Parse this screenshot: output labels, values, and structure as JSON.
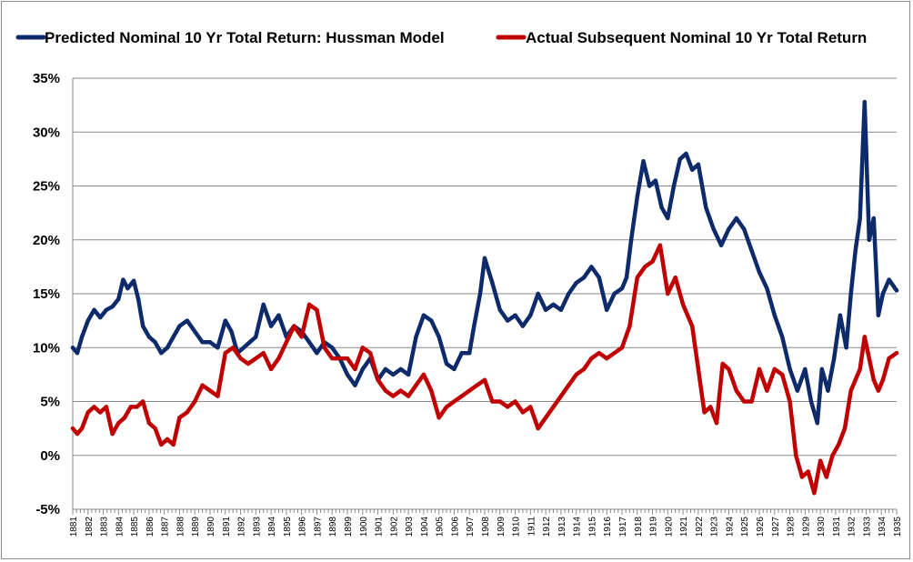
{
  "chart_data": {
    "type": "line",
    "title": "",
    "xlabel": "",
    "ylabel": "",
    "ylim": [
      -5,
      35
    ],
    "xlim": [
      1881,
      1935
    ],
    "grid": "horizontal",
    "legend": "top",
    "y_ticks": [
      "35%",
      "30%",
      "25%",
      "20%",
      "15%",
      "10%",
      "5%",
      "0%",
      "-5%"
    ],
    "x_ticks": [
      "1881",
      "1882",
      "1883",
      "1884",
      "1885",
      "1886",
      "1887",
      "1888",
      "1889",
      "1890",
      "1891",
      "1892",
      "1893",
      "1894",
      "1895",
      "1896",
      "1897",
      "1898",
      "1899",
      "1900",
      "1901",
      "1902",
      "1903",
      "1904",
      "1905",
      "1906",
      "1907",
      "1908",
      "1909",
      "1910",
      "1911",
      "1912",
      "1913",
      "1914",
      "1915",
      "1916",
      "1917",
      "1918",
      "1919",
      "1920",
      "1921",
      "1922",
      "1923",
      "1924",
      "1925",
      "1926",
      "1927",
      "1928",
      "1929",
      "1930",
      "1931",
      "1932",
      "1933",
      "1934",
      "1935"
    ],
    "series": [
      {
        "name": "Predicted Nominal 10 Yr Total Return: Hussman Model",
        "color": "#0d2b6b",
        "x": [
          1881.0,
          1881.3,
          1881.6,
          1882.0,
          1882.4,
          1882.8,
          1883.2,
          1883.6,
          1884.0,
          1884.3,
          1884.6,
          1885.0,
          1885.3,
          1885.6,
          1886.0,
          1886.4,
          1886.8,
          1887.2,
          1887.6,
          1888.0,
          1888.5,
          1889.0,
          1889.5,
          1890.0,
          1890.5,
          1891.0,
          1891.4,
          1891.8,
          1892.2,
          1892.6,
          1893.0,
          1893.5,
          1894.0,
          1894.5,
          1895.0,
          1895.5,
          1896.0,
          1896.5,
          1897.0,
          1897.5,
          1898.0,
          1898.5,
          1899.0,
          1899.5,
          1900.0,
          1900.5,
          1901.0,
          1901.5,
          1902.0,
          1902.5,
          1903.0,
          1903.5,
          1904.0,
          1904.5,
          1905.0,
          1905.5,
          1906.0,
          1906.5,
          1907.0,
          1907.3,
          1907.7,
          1908.0,
          1908.5,
          1909.0,
          1909.5,
          1910.0,
          1910.5,
          1911.0,
          1911.5,
          1912.0,
          1912.5,
          1913.0,
          1913.5,
          1914.0,
          1914.5,
          1915.0,
          1915.5,
          1916.0,
          1916.5,
          1917.0,
          1917.3,
          1917.6,
          1918.0,
          1918.4,
          1918.8,
          1919.2,
          1919.6,
          1920.0,
          1920.4,
          1920.8,
          1921.2,
          1921.6,
          1922.0,
          1922.5,
          1923.0,
          1923.5,
          1924.0,
          1924.5,
          1925.0,
          1925.5,
          1926.0,
          1926.5,
          1927.0,
          1927.5,
          1928.0,
          1928.5,
          1929.0,
          1929.4,
          1929.8,
          1930.1,
          1930.5,
          1930.9,
          1931.3,
          1931.7,
          1932.0,
          1932.3,
          1932.6,
          1932.9,
          1933.2,
          1933.5,
          1933.8,
          1934.1,
          1934.5,
          1935.0
        ],
        "values": [
          10,
          9.5,
          11,
          12.5,
          13.5,
          12.8,
          13.5,
          13.8,
          14.5,
          16.3,
          15.5,
          16.2,
          14.5,
          12,
          11,
          10.5,
          9.5,
          10,
          11,
          12,
          12.5,
          11.5,
          10.5,
          10.5,
          10,
          12.5,
          11.5,
          9.5,
          10,
          10.5,
          11,
          14,
          12,
          13,
          11,
          12,
          11.5,
          10.5,
          9.5,
          10.5,
          10,
          9,
          7.5,
          6.5,
          8,
          9,
          7,
          8,
          7.5,
          8,
          7.5,
          11,
          13,
          12.5,
          11,
          8.5,
          8,
          9.5,
          9.5,
          12,
          15,
          18.3,
          16,
          13.5,
          12.5,
          13,
          12,
          13,
          15,
          13.5,
          14,
          13.5,
          15,
          16,
          16.5,
          17.5,
          16.5,
          13.5,
          15,
          15.5,
          16.5,
          20,
          24,
          27.3,
          25,
          25.5,
          23,
          22,
          25,
          27.5,
          28,
          26.5,
          27,
          23,
          21,
          19.5,
          21,
          22,
          21,
          19,
          17,
          15.5,
          13,
          11,
          8,
          6,
          8,
          5,
          3,
          8,
          6,
          9,
          13,
          10,
          15,
          19,
          22,
          32.8,
          20,
          22,
          13,
          15,
          16.3,
          15.3
        ]
      },
      {
        "name": "Actual Subsequent Nominal 10 Yr Total Return",
        "color": "#c00000",
        "x": [
          1881.0,
          1881.3,
          1881.6,
          1882.0,
          1882.4,
          1882.8,
          1883.2,
          1883.6,
          1884.0,
          1884.4,
          1884.8,
          1885.2,
          1885.6,
          1886.0,
          1886.4,
          1886.8,
          1887.2,
          1887.6,
          1888.0,
          1888.5,
          1889.0,
          1889.5,
          1890.0,
          1890.5,
          1891.0,
          1891.5,
          1892.0,
          1892.5,
          1893.0,
          1893.5,
          1894.0,
          1894.5,
          1895.0,
          1895.5,
          1896.0,
          1896.5,
          1897.0,
          1897.5,
          1898.0,
          1898.5,
          1899.0,
          1899.5,
          1900.0,
          1900.5,
          1901.0,
          1901.5,
          1902.0,
          1902.5,
          1903.0,
          1903.5,
          1904.0,
          1904.5,
          1905.0,
          1905.5,
          1906.0,
          1906.5,
          1907.0,
          1907.5,
          1908.0,
          1908.5,
          1909.0,
          1909.5,
          1910.0,
          1910.5,
          1911.0,
          1911.5,
          1912.0,
          1912.5,
          1913.0,
          1913.5,
          1914.0,
          1914.5,
          1915.0,
          1915.5,
          1916.0,
          1916.5,
          1917.0,
          1917.5,
          1918.0,
          1918.5,
          1919.0,
          1919.5,
          1920.0,
          1920.5,
          1921.0,
          1921.3,
          1921.6,
          1922.0,
          1922.4,
          1922.8,
          1923.2,
          1923.6,
          1924.0,
          1924.5,
          1925.0,
          1925.5,
          1926.0,
          1926.5,
          1927.0,
          1927.5,
          1928.0,
          1928.4,
          1928.8,
          1929.2,
          1929.6,
          1930.0,
          1930.4,
          1930.8,
          1931.2,
          1931.6,
          1932.0,
          1932.3,
          1932.6,
          1932.9,
          1933.2,
          1933.5,
          1933.8,
          1934.1,
          1934.5,
          1935.0
        ],
        "values": [
          2.5,
          2,
          2.5,
          4,
          4.5,
          4,
          4.5,
          2,
          3,
          3.5,
          4.5,
          4.5,
          5,
          3,
          2.5,
          1,
          1.5,
          1,
          3.5,
          4,
          5,
          6.5,
          6,
          5.5,
          9.5,
          10,
          9,
          8.5,
          9,
          9.5,
          8,
          9,
          10.5,
          12,
          11,
          14,
          13.5,
          10,
          9,
          9,
          9,
          8,
          10,
          9.5,
          7,
          6,
          5.5,
          6,
          5.5,
          6.5,
          7.5,
          6,
          3.5,
          4.5,
          5,
          5.5,
          6,
          6.5,
          7,
          5,
          5,
          4.5,
          5,
          4,
          4.5,
          2.5,
          3.5,
          4.5,
          5.5,
          6.5,
          7.5,
          8,
          9,
          9.5,
          9,
          9.5,
          10,
          12,
          16.5,
          17.5,
          18,
          19.5,
          15,
          16.5,
          14,
          13,
          12,
          8,
          4,
          4.5,
          3,
          8.5,
          8,
          6,
          5,
          5,
          8,
          6,
          8,
          7.5,
          5,
          0,
          -2,
          -1.5,
          -3.5,
          -0.5,
          -2,
          0,
          1,
          2.5,
          6,
          7,
          8,
          11,
          9,
          7,
          6,
          7,
          9,
          9.5
        ]
      }
    ]
  }
}
